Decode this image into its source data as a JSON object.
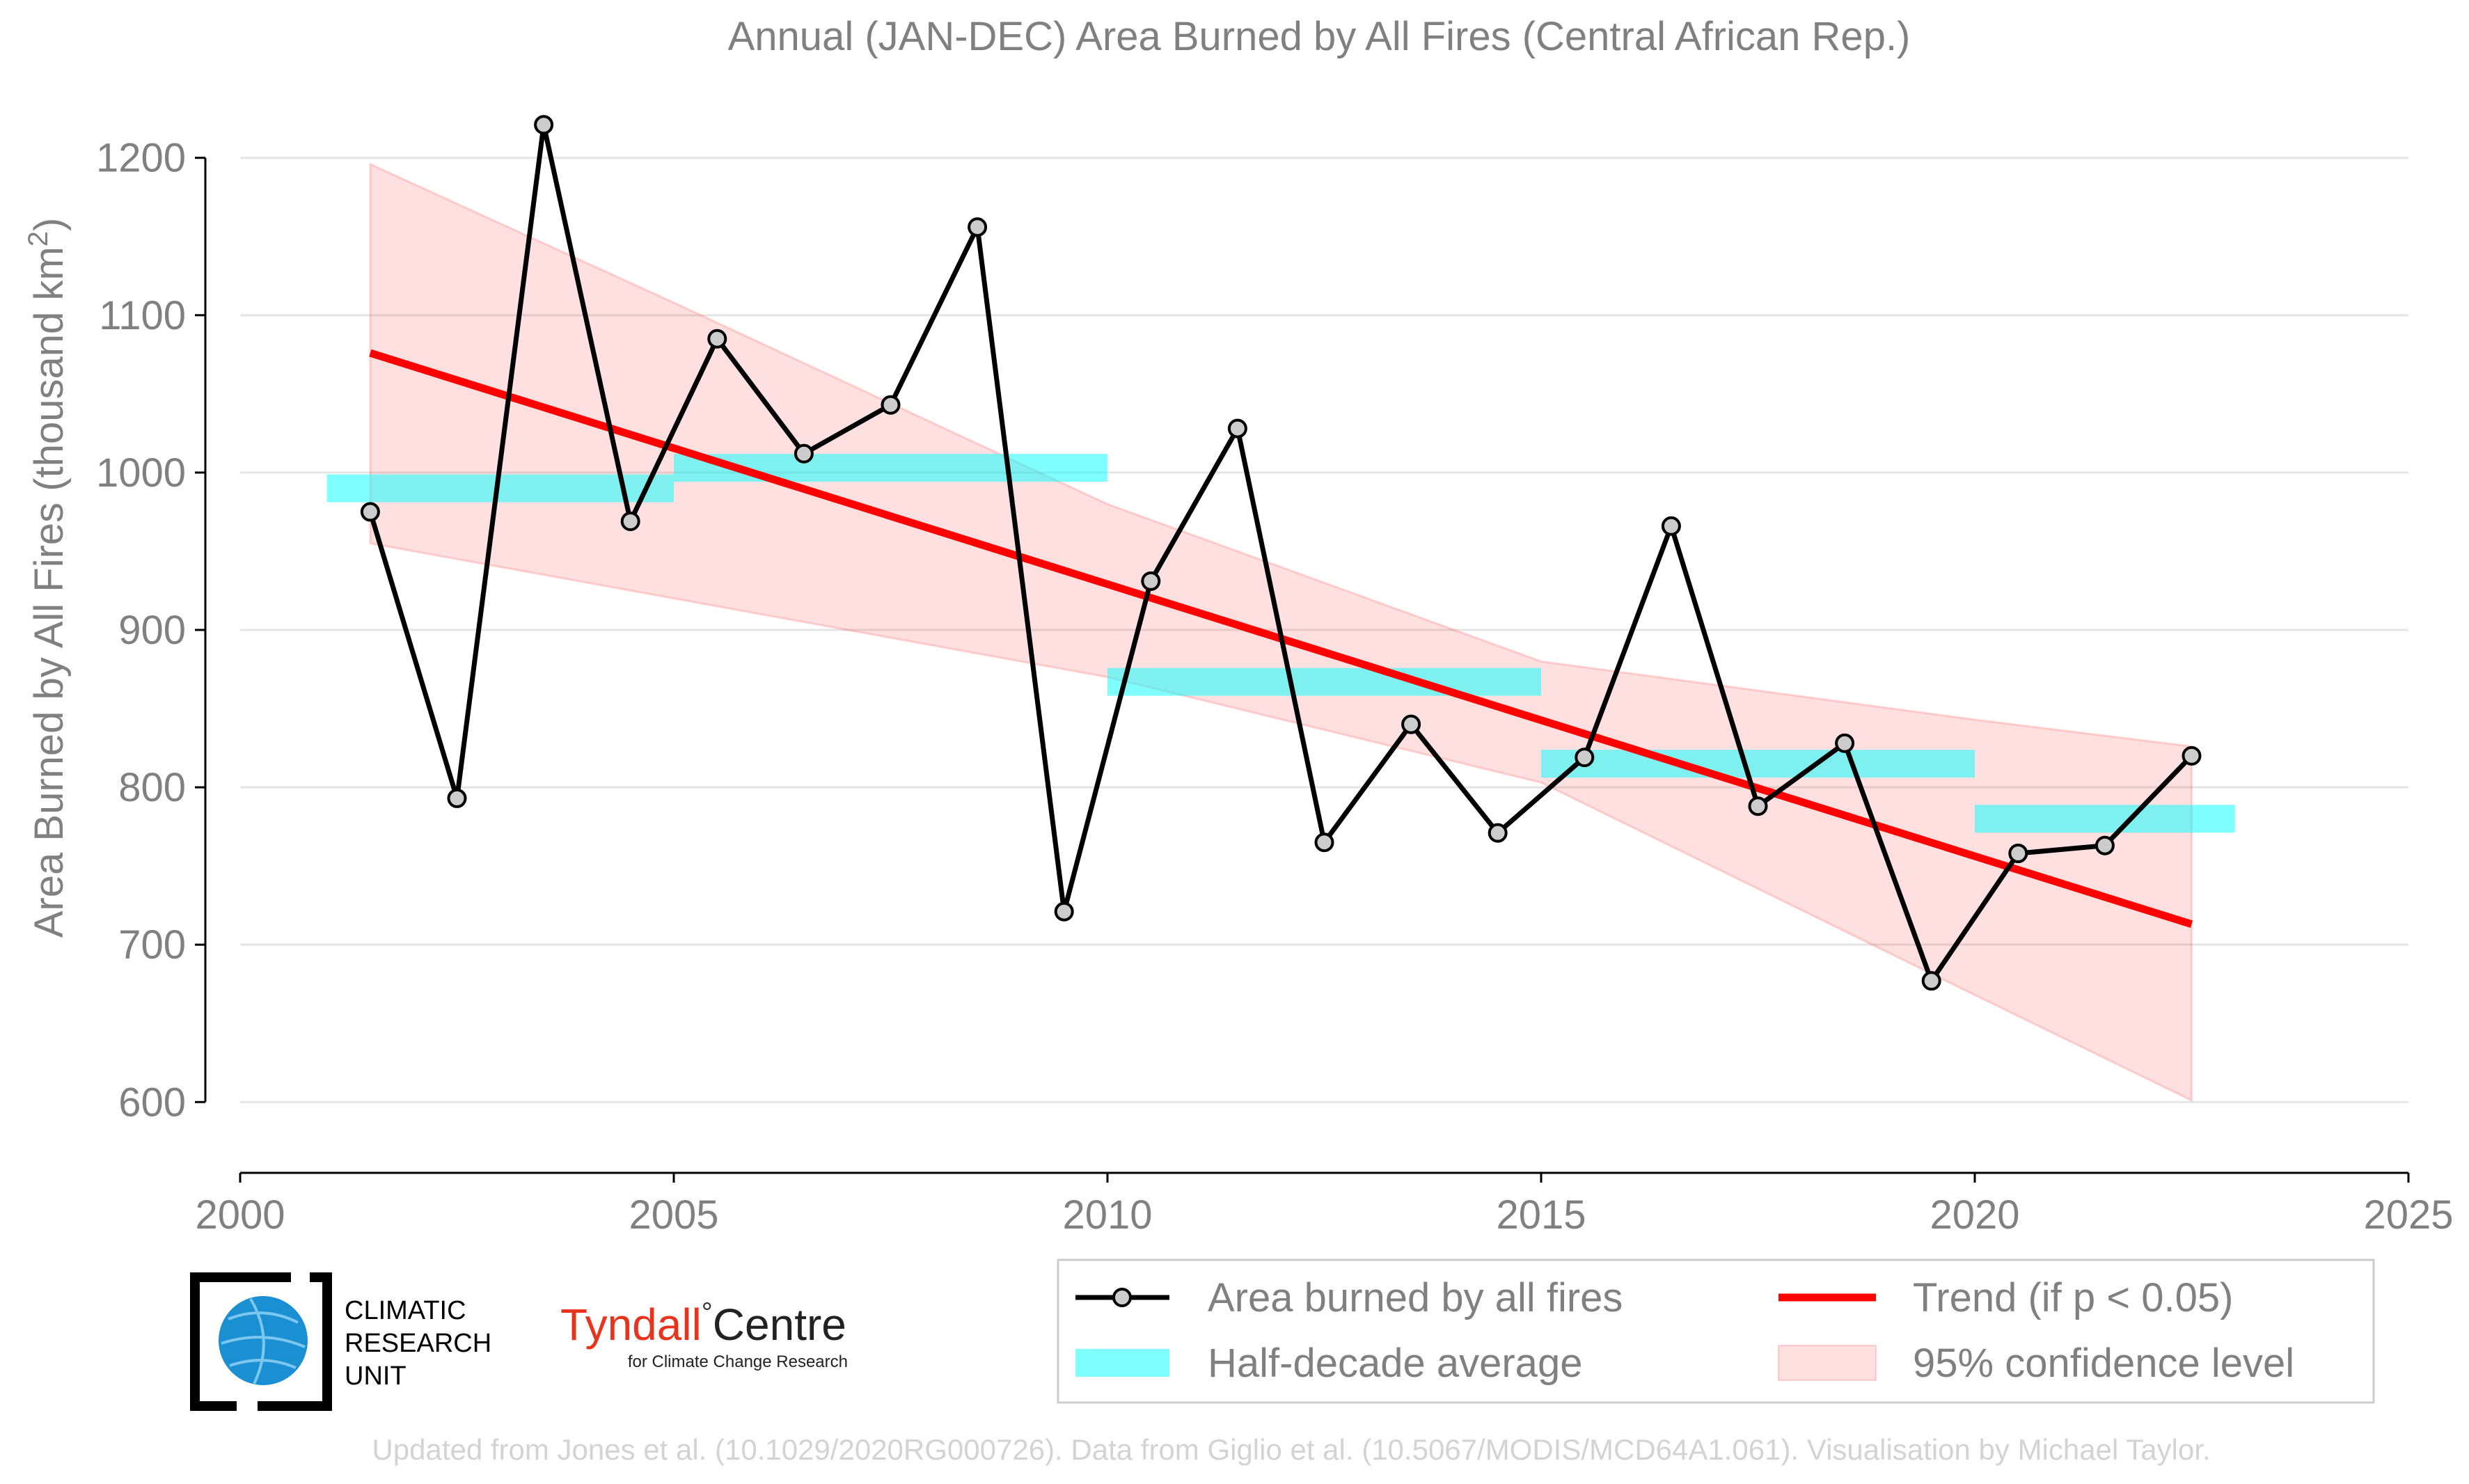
{
  "chart_data": {
    "type": "line",
    "title": "Annual (JAN-DEC) Area Burned by All Fires (Central African Rep.)",
    "ylabel_main": "Area Burned by All Fires (thousand km",
    "ylabel_sup": "2",
    "ylabel_end": ")",
    "xlim": [
      2000,
      2025
    ],
    "ylim": [
      555,
      1245
    ],
    "x_ticks": [
      2000,
      2005,
      2010,
      2015,
      2020,
      2025
    ],
    "y_ticks": [
      600,
      700,
      800,
      900,
      1000,
      1100,
      1200
    ],
    "grid": "horizontal",
    "legend_position": "bottom-right",
    "series": [
      {
        "name": "Area burned by all fires",
        "color": "#000000",
        "x": [
          2001.5,
          2002.5,
          2003.5,
          2004.5,
          2005.5,
          2006.5,
          2007.5,
          2008.5,
          2009.5,
          2010.5,
          2011.5,
          2012.5,
          2013.5,
          2014.5,
          2015.5,
          2016.5,
          2017.5,
          2018.5,
          2019.5,
          2020.5,
          2021.5,
          2022.5
        ],
        "values": [
          975,
          793,
          1221,
          969,
          1085,
          1012,
          1043,
          1156,
          721,
          931,
          1028,
          765,
          840,
          771,
          819,
          966,
          788,
          828,
          677,
          758,
          763,
          820
        ]
      }
    ],
    "half_decade_average": {
      "name": "Half-decade average",
      "color": "#00ffff",
      "segments": [
        {
          "x0": 2001,
          "x1": 2005,
          "value": 990
        },
        {
          "x0": 2005,
          "x1": 2010,
          "value": 1003
        },
        {
          "x0": 2010,
          "x1": 2015,
          "value": 867
        },
        {
          "x0": 2015,
          "x1": 2020,
          "value": 815
        },
        {
          "x0": 2020,
          "x1": 2023,
          "value": 780
        }
      ]
    },
    "trend": {
      "name": "Trend (if p < 0.05)",
      "color": "#ff0000",
      "x": [
        2001.5,
        2022.5
      ],
      "values": [
        1076,
        713
      ]
    },
    "confidence_band": {
      "name": "95% confidence level",
      "color": "#ffcccc",
      "x": [
        2001.5,
        2005,
        2010,
        2015,
        2020,
        2022.5
      ],
      "upper": [
        1196,
        1108,
        980,
        880,
        843,
        826
      ],
      "lower": [
        955,
        920,
        870,
        803,
        668,
        601
      ]
    }
  },
  "logos": {
    "cru_line1": "CLIMATIC",
    "cru_line2": "RESEARCH",
    "cru_line3": "UNIT",
    "tyndall_main": "Tyndall",
    "tyndall_degree": "°",
    "tyndall_centre": "Centre",
    "tyndall_sub": "for Climate Change Research"
  },
  "footer": "Updated from Jones et al. (10.1029/2020RG000726). Data from Giglio et al. (10.5067/MODIS/MCD64A1.061). Visualisation by Michael Taylor."
}
